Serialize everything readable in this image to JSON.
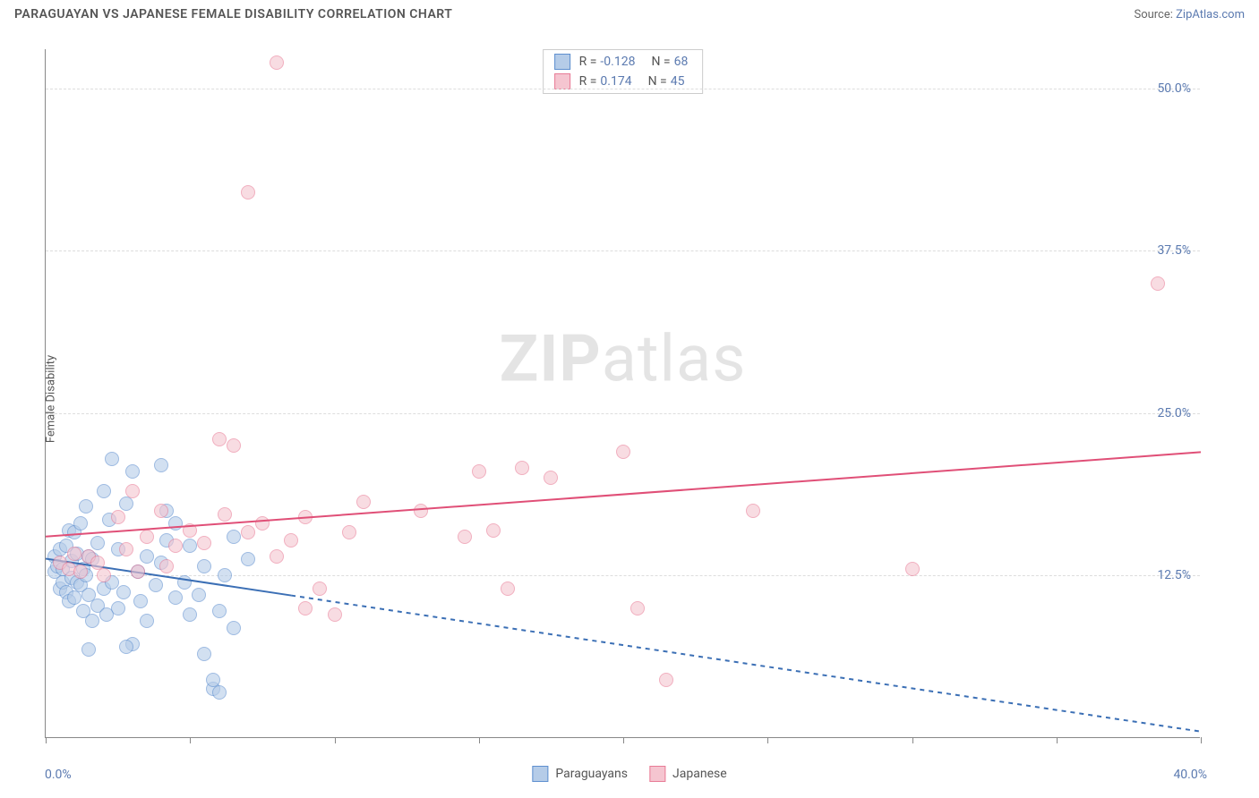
{
  "title": "PARAGUAYAN VS JAPANESE FEMALE DISABILITY CORRELATION CHART",
  "source_prefix": "Source: ",
  "source_link": "ZipAtlas.com",
  "ylabel": "Female Disability",
  "watermark_zip": "ZIP",
  "watermark_atlas": "atlas",
  "chart": {
    "type": "scatter",
    "xlim": [
      0,
      40
    ],
    "ylim": [
      0,
      53
    ],
    "x_ticks": [
      0,
      5,
      10,
      15,
      20,
      25,
      30,
      35,
      40
    ],
    "y_ticks": [
      12.5,
      25.0,
      37.5,
      50.0
    ],
    "y_tick_labels": [
      "12.5%",
      "25.0%",
      "37.5%",
      "50.0%"
    ],
    "x_min_label": "0.0%",
    "x_max_label": "40.0%",
    "background_color": "#ffffff",
    "grid_color": "#dddddd",
    "axis_color": "#888888",
    "label_color": "#5b7ab0",
    "title_color": "#555555",
    "title_fontsize": 14,
    "label_fontsize": 13,
    "tick_fontsize": 14,
    "point_radius": 8,
    "point_border": 1.5
  },
  "series": [
    {
      "name": "Paraguayans",
      "fill": "#b5cce8",
      "stroke": "#5e8fcf",
      "fill_opacity": 0.6,
      "R_label": "R = ",
      "R": "-0.128",
      "N_label": "N = ",
      "N": "68",
      "trend": {
        "x0": 0,
        "y0": 13.8,
        "x1": 40,
        "y1": 0.5,
        "solid_until_x": 8.5,
        "color": "#3b6fb5",
        "width": 2,
        "dash": "5,5"
      },
      "points": [
        [
          0.3,
          14.0
        ],
        [
          0.3,
          12.8
        ],
        [
          0.4,
          13.2
        ],
        [
          0.5,
          11.5
        ],
        [
          0.5,
          14.5
        ],
        [
          0.6,
          13.0
        ],
        [
          0.6,
          12.0
        ],
        [
          0.7,
          11.2
        ],
        [
          0.7,
          14.8
        ],
        [
          0.8,
          16.0
        ],
        [
          0.8,
          10.5
        ],
        [
          0.9,
          12.3
        ],
        [
          0.9,
          13.6
        ],
        [
          1.0,
          15.8
        ],
        [
          1.0,
          10.8
        ],
        [
          1.1,
          12.0
        ],
        [
          1.1,
          14.2
        ],
        [
          1.2,
          11.8
        ],
        [
          1.2,
          16.5
        ],
        [
          1.3,
          13.0
        ],
        [
          1.3,
          9.8
        ],
        [
          1.4,
          17.8
        ],
        [
          1.4,
          12.5
        ],
        [
          1.5,
          11.0
        ],
        [
          1.5,
          14.0
        ],
        [
          1.6,
          9.0
        ],
        [
          1.6,
          13.8
        ],
        [
          1.8,
          10.2
        ],
        [
          1.8,
          15.0
        ],
        [
          2.0,
          11.5
        ],
        [
          2.0,
          19.0
        ],
        [
          2.1,
          9.5
        ],
        [
          2.2,
          16.8
        ],
        [
          2.3,
          12.0
        ],
        [
          2.3,
          21.5
        ],
        [
          2.5,
          10.0
        ],
        [
          2.5,
          14.5
        ],
        [
          2.7,
          11.2
        ],
        [
          2.8,
          18.0
        ],
        [
          3.0,
          20.5
        ],
        [
          3.0,
          7.2
        ],
        [
          3.2,
          12.8
        ],
        [
          3.3,
          10.5
        ],
        [
          3.5,
          14.0
        ],
        [
          3.5,
          9.0
        ],
        [
          3.8,
          11.8
        ],
        [
          4.0,
          13.5
        ],
        [
          4.0,
          21.0
        ],
        [
          4.2,
          15.2
        ],
        [
          4.5,
          10.8
        ],
        [
          4.5,
          16.5
        ],
        [
          4.8,
          12.0
        ],
        [
          5.0,
          9.5
        ],
        [
          5.0,
          14.8
        ],
        [
          5.3,
          11.0
        ],
        [
          5.5,
          6.5
        ],
        [
          5.5,
          13.2
        ],
        [
          5.8,
          3.8
        ],
        [
          5.8,
          4.5
        ],
        [
          6.0,
          9.8
        ],
        [
          6.0,
          3.5
        ],
        [
          6.2,
          12.5
        ],
        [
          6.5,
          15.5
        ],
        [
          6.5,
          8.5
        ],
        [
          7.0,
          13.8
        ],
        [
          1.5,
          6.8
        ],
        [
          2.8,
          7.0
        ],
        [
          4.2,
          17.5
        ]
      ]
    },
    {
      "name": "Japanese",
      "fill": "#f5c5d0",
      "stroke": "#e87b96",
      "fill_opacity": 0.6,
      "R_label": "R = ",
      "R": "0.174",
      "N_label": "N = ",
      "N": "45",
      "trend": {
        "x0": 0,
        "y0": 15.5,
        "x1": 40,
        "y1": 22.0,
        "solid_until_x": 40,
        "color": "#e04f77",
        "width": 2,
        "dash": ""
      },
      "points": [
        [
          0.5,
          13.5
        ],
        [
          0.8,
          13.0
        ],
        [
          1.0,
          14.2
        ],
        [
          1.2,
          12.8
        ],
        [
          1.5,
          14.0
        ],
        [
          1.8,
          13.5
        ],
        [
          2.0,
          12.5
        ],
        [
          2.5,
          17.0
        ],
        [
          2.8,
          14.5
        ],
        [
          3.0,
          19.0
        ],
        [
          3.2,
          12.8
        ],
        [
          3.5,
          15.5
        ],
        [
          4.0,
          17.5
        ],
        [
          4.2,
          13.2
        ],
        [
          4.5,
          14.8
        ],
        [
          5.0,
          16.0
        ],
        [
          5.5,
          15.0
        ],
        [
          6.0,
          23.0
        ],
        [
          6.2,
          17.2
        ],
        [
          6.5,
          22.5
        ],
        [
          7.0,
          15.8
        ],
        [
          7.0,
          42.0
        ],
        [
          7.5,
          16.5
        ],
        [
          8.0,
          52.0
        ],
        [
          8.0,
          14.0
        ],
        [
          8.5,
          15.2
        ],
        [
          9.0,
          10.0
        ],
        [
          9.0,
          17.0
        ],
        [
          9.5,
          11.5
        ],
        [
          10.0,
          9.5
        ],
        [
          10.5,
          15.8
        ],
        [
          11.0,
          18.2
        ],
        [
          13.0,
          17.5
        ],
        [
          14.5,
          15.5
        ],
        [
          15.0,
          20.5
        ],
        [
          15.5,
          16.0
        ],
        [
          16.0,
          11.5
        ],
        [
          17.5,
          20.0
        ],
        [
          20.0,
          22.0
        ],
        [
          20.5,
          10.0
        ],
        [
          21.5,
          4.5
        ],
        [
          24.5,
          17.5
        ],
        [
          30.0,
          13.0
        ],
        [
          38.5,
          35.0
        ],
        [
          16.5,
          20.8
        ]
      ]
    }
  ]
}
